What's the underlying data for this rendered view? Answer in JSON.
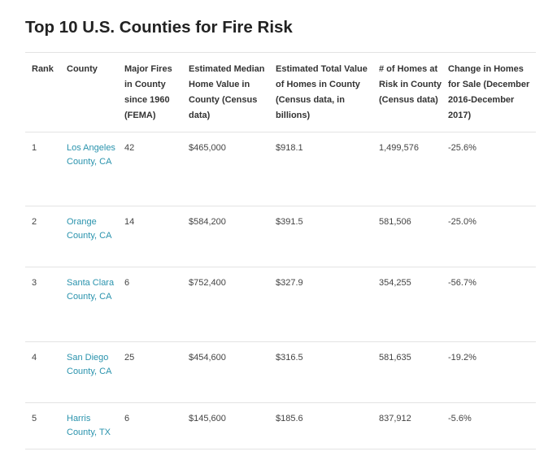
{
  "page": {
    "title": "Top 10 U.S. Counties for Fire Risk"
  },
  "table": {
    "headers": {
      "rank": "Rank",
      "county": "County",
      "fires": "Major Fires in County since 1960 (FEMA)",
      "median": "Estimated Median Home Value in County (Census data)",
      "total": "Estimated Total Value of Homes in County (Census data, in billions)",
      "homes": "# of Homes at Risk in County (Census data)",
      "change": "Change in Homes for Sale (December 2016-December 2017)"
    },
    "rows": [
      {
        "rank": "1",
        "county": "Los Angeles County, CA",
        "fires": "42",
        "median": "$465,000",
        "total": "$918.1",
        "homes": "1,499,576",
        "change": "-25.6%"
      },
      {
        "rank": "2",
        "county": "Orange County, CA",
        "fires": "14",
        "median": "$584,200",
        "total": "$391.5",
        "homes": "581,506",
        "change": "-25.0%"
      },
      {
        "rank": "3",
        "county": "Santa Clara County, CA",
        "fires": "6",
        "median": "$752,400",
        "total": "$327.9",
        "homes": "354,255",
        "change": "-56.7%"
      },
      {
        "rank": "4",
        "county": "San Diego County, CA",
        "fires": "25",
        "median": "$454,600",
        "total": "$316.5",
        "homes": "581,635",
        "change": "-19.2%"
      },
      {
        "rank": "5",
        "county": "Harris County, TX",
        "fires": "6",
        "median": "$145,600",
        "total": "$185.6",
        "homes": "837,912",
        "change": "-5.6%"
      }
    ]
  },
  "colors": {
    "link": "#2a93ad",
    "rule": "#e3e3e3",
    "text": "#333333"
  }
}
